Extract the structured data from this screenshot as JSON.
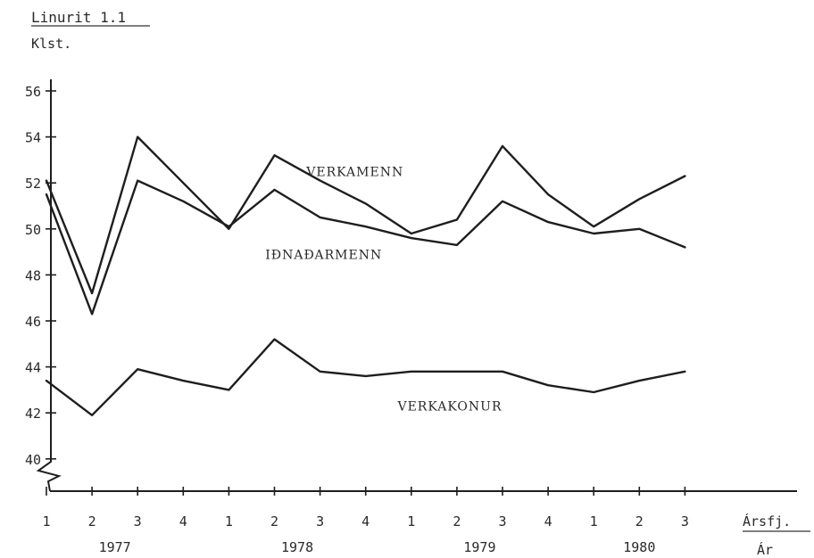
{
  "chart_data": {
    "type": "line",
    "title": "Linurit 1.1",
    "ylabel": "Klst.",
    "xlabel": "Ársfj.",
    "xlabel2": "Ár",
    "ylim": [
      40,
      56
    ],
    "yticks": [
      40,
      42,
      44,
      46,
      48,
      50,
      52,
      54,
      56
    ],
    "axis_break": true,
    "grid": false,
    "categories": [
      "1",
      "2",
      "3",
      "4",
      "1",
      "2",
      "3",
      "4",
      "1",
      "2",
      "3",
      "4",
      "1",
      "2",
      "3"
    ],
    "years": [
      {
        "label": "1977",
        "quarters": [
          0,
          3
        ]
      },
      {
        "label": "1978",
        "quarters": [
          4,
          7
        ]
      },
      {
        "label": "1979",
        "quarters": [
          8,
          11
        ]
      },
      {
        "label": "1980",
        "quarters": [
          12,
          14
        ]
      }
    ],
    "series": [
      {
        "name": "VERKAMENN",
        "label_at": {
          "x": 5.7,
          "y": 52.3
        },
        "values": [
          52.1,
          47.2,
          54.0,
          52.0,
          50.0,
          53.2,
          52.1,
          51.1,
          49.8,
          50.4,
          53.6,
          51.5,
          50.1,
          51.3,
          52.3
        ]
      },
      {
        "name": "IÐNAÐARMENN",
        "label_at": {
          "x": 4.8,
          "y": 48.7
        },
        "values": [
          51.5,
          46.3,
          52.1,
          51.2,
          50.1,
          51.7,
          50.5,
          50.1,
          49.6,
          49.3,
          51.2,
          50.3,
          49.8,
          50.0,
          49.2
        ]
      },
      {
        "name": "VERKAKONUR",
        "label_at": {
          "x": 7.7,
          "y": 42.1
        },
        "values": [
          43.4,
          41.9,
          43.9,
          43.4,
          43.0,
          45.2,
          43.8,
          43.6,
          43.8,
          43.8,
          43.8,
          43.2,
          42.9,
          43.4,
          43.8
        ]
      }
    ]
  }
}
